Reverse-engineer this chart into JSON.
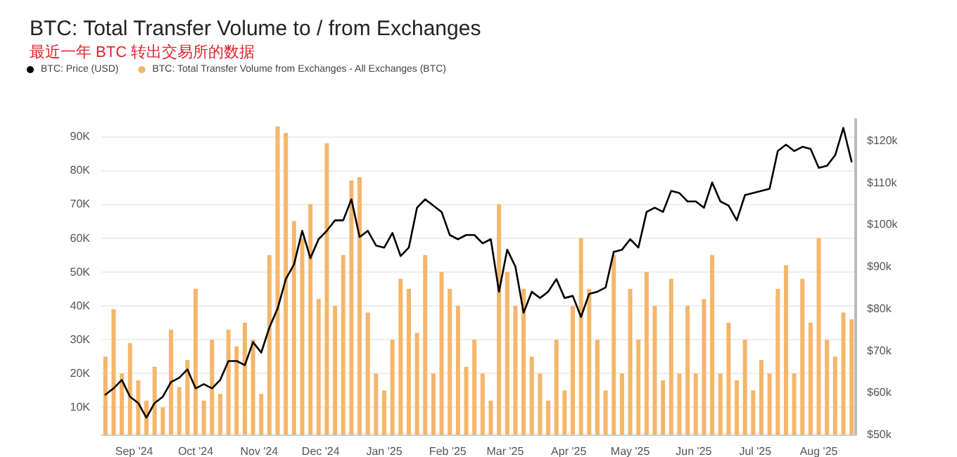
{
  "chart_data": {
    "type": "bar",
    "title": "BTC: Total Transfer Volume to / from Exchanges",
    "subtitle": "最近一年 BTC 转出交易所的数据",
    "x": [
      "2024-08-18",
      "2024-08-22",
      "2024-08-26",
      "2024-08-30",
      "2024-09-03",
      "2024-09-07",
      "2024-09-11",
      "2024-09-15",
      "2024-09-19",
      "2024-09-23",
      "2024-09-27",
      "2024-10-01",
      "2024-10-05",
      "2024-10-09",
      "2024-10-13",
      "2024-10-17",
      "2024-10-21",
      "2024-10-25",
      "2024-10-29",
      "2024-11-02",
      "2024-11-06",
      "2024-11-10",
      "2024-11-14",
      "2024-11-18",
      "2024-11-22",
      "2024-11-26",
      "2024-11-30",
      "2024-12-04",
      "2024-12-08",
      "2024-12-12",
      "2024-12-16",
      "2024-12-20",
      "2024-12-24",
      "2024-12-28",
      "2025-01-01",
      "2025-01-05",
      "2025-01-09",
      "2025-01-13",
      "2025-01-17",
      "2025-01-21",
      "2025-01-25",
      "2025-01-29",
      "2025-02-02",
      "2025-02-06",
      "2025-02-10",
      "2025-02-14",
      "2025-02-18",
      "2025-02-22",
      "2025-02-26",
      "2025-03-02",
      "2025-03-06",
      "2025-03-10",
      "2025-03-14",
      "2025-03-18",
      "2025-03-22",
      "2025-03-26",
      "2025-03-30",
      "2025-04-03",
      "2025-04-07",
      "2025-04-11",
      "2025-04-15",
      "2025-04-19",
      "2025-04-23",
      "2025-04-27",
      "2025-05-01",
      "2025-05-05",
      "2025-05-09",
      "2025-05-13",
      "2025-05-17",
      "2025-05-21",
      "2025-05-25",
      "2025-05-29",
      "2025-06-02",
      "2025-06-06",
      "2025-06-10",
      "2025-06-14",
      "2025-06-18",
      "2025-06-22",
      "2025-06-26",
      "2025-06-30",
      "2025-07-04",
      "2025-07-08",
      "2025-07-12",
      "2025-07-16",
      "2025-07-20",
      "2025-07-24",
      "2025-07-28",
      "2025-08-01",
      "2025-08-05",
      "2025-08-09",
      "2025-08-13",
      "2025-08-17"
    ],
    "series": [
      {
        "name": "BTC: Price (USD)",
        "type": "line",
        "axis": "y2",
        "color": "#000000",
        "values": [
          59500,
          61000,
          63000,
          59000,
          57500,
          54000,
          57500,
          59000,
          62500,
          63500,
          65500,
          61000,
          62000,
          61000,
          63000,
          67500,
          67500,
          66500,
          72000,
          69500,
          75500,
          80000,
          87000,
          90500,
          98500,
          92000,
          96500,
          98500,
          101000,
          101000,
          106000,
          97000,
          98500,
          95000,
          94500,
          98000,
          92500,
          94500,
          104000,
          106000,
          104500,
          103000,
          97500,
          96500,
          97500,
          97500,
          95500,
          96500,
          84000,
          94000,
          90000,
          79000,
          84000,
          82500,
          84000,
          87000,
          82500,
          83000,
          78000,
          83500,
          84000,
          85000,
          93500,
          94000,
          96500,
          94500,
          103000,
          104000,
          103000,
          108000,
          107500,
          105500,
          105500,
          104000,
          110000,
          105500,
          104500,
          101000,
          107000,
          107500,
          108000,
          108500,
          117500,
          119000,
          117500,
          118500,
          118000,
          113500,
          114000,
          116500,
          123000,
          115000
        ]
      },
      {
        "name": "BTC: Total Transfer Volume from Exchanges - All Exchanges (BTC)",
        "color": "#f5b66a",
        "values": [
          25000,
          39000,
          20000,
          29000,
          18000,
          12000,
          22000,
          10000,
          33000,
          16000,
          24000,
          45000,
          12000,
          30000,
          14000,
          33000,
          28000,
          35000,
          30000,
          14000,
          55000,
          93000,
          91000,
          65000,
          60000,
          70000,
          42000,
          88000,
          40000,
          55000,
          77000,
          78000,
          38000,
          20000,
          15000,
          30000,
          48000,
          45000,
          32000,
          55000,
          20000,
          50000,
          45000,
          40000,
          22000,
          30000,
          20000,
          12000,
          70000,
          50000,
          40000,
          45000,
          25000,
          20000,
          12000,
          30000,
          15000,
          40000,
          60000,
          45000,
          30000,
          15000,
          55000,
          20000,
          45000,
          30000,
          50000,
          40000,
          18000,
          48000,
          20000,
          40000,
          20000,
          42000,
          55000,
          20000,
          35000,
          18000,
          30000,
          15000,
          24000,
          20000,
          45000,
          52000,
          20000,
          48000,
          35000,
          60000,
          30000,
          25000,
          38000,
          36000
        ]
      }
    ],
    "xlim": [
      "2024-08-16",
      "2025-08-19"
    ],
    "xticks": [
      {
        "value": "2024-09-01",
        "label": "Sep '24"
      },
      {
        "value": "2024-10-01",
        "label": "Oct '24"
      },
      {
        "value": "2024-11-01",
        "label": "Nov '24"
      },
      {
        "value": "2024-12-01",
        "label": "Dec '24"
      },
      {
        "value": "2025-01-01",
        "label": "Jan '25"
      },
      {
        "value": "2025-02-01",
        "label": "Feb '25"
      },
      {
        "value": "2025-03-01",
        "label": "Mar '25"
      },
      {
        "value": "2025-04-01",
        "label": "Apr '25"
      },
      {
        "value": "2025-05-01",
        "label": "May '25"
      },
      {
        "value": "2025-06-01",
        "label": "Jun '25"
      },
      {
        "value": "2025-07-01",
        "label": "Jul '25"
      },
      {
        "value": "2025-08-01",
        "label": "Aug '25"
      }
    ],
    "ylim": [
      2000,
      95000
    ],
    "yticks": [
      {
        "value": 10000,
        "label": "10K"
      },
      {
        "value": 20000,
        "label": "20K"
      },
      {
        "value": 30000,
        "label": "30K"
      },
      {
        "value": 40000,
        "label": "40K"
      },
      {
        "value": 50000,
        "label": "50K"
      },
      {
        "value": 60000,
        "label": "60K"
      },
      {
        "value": 70000,
        "label": "70K"
      },
      {
        "value": 80000,
        "label": "80K"
      },
      {
        "value": 90000,
        "label": "90K"
      }
    ],
    "y2lim": [
      50000,
      125000
    ],
    "y2ticks": [
      {
        "value": 50000,
        "label": "$50k"
      },
      {
        "value": 60000,
        "label": "$60k"
      },
      {
        "value": 70000,
        "label": "$70k"
      },
      {
        "value": 80000,
        "label": "$80k"
      },
      {
        "value": 90000,
        "label": "$90k"
      },
      {
        "value": 100000,
        "label": "$100k"
      },
      {
        "value": 110000,
        "label": "$110k"
      },
      {
        "value": 120000,
        "label": "$120k"
      }
    ],
    "grid": "y",
    "legend": "top left",
    "marker": "none",
    "line_style": "solid"
  }
}
